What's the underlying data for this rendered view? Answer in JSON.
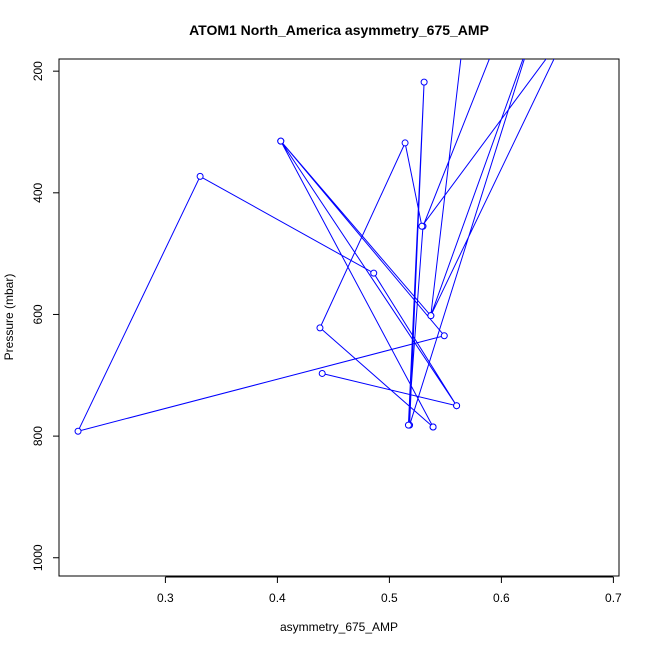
{
  "chart_data": {
    "type": "line",
    "title": "ATOM1 North_America asymmetry_675_AMP",
    "xlabel": "asymmetry_675_AMP",
    "ylabel": "Pressure (mbar)",
    "xlim": [
      0.205,
      0.705
    ],
    "ylim": [
      1030,
      180
    ],
    "y_reversed": true,
    "xticks": [
      0.3,
      0.4,
      0.5,
      0.6,
      0.7
    ],
    "xtick_labels": [
      "0.3",
      "0.4",
      "0.5",
      "0.6",
      "0.7"
    ],
    "yticks": [
      200,
      400,
      600,
      800,
      1000
    ],
    "ytick_labels": [
      "200",
      "400",
      "600",
      "800",
      "1000"
    ],
    "grid": false,
    "series": [
      {
        "color": "#0000ff",
        "marker": "open-circle",
        "points": [
          {
            "x": 0.539,
            "y": 785
          },
          {
            "x": 0.403,
            "y": 315
          },
          {
            "x": 0.56,
            "y": 750
          },
          {
            "x": 0.44,
            "y": 697
          },
          {
            "x": 0.56,
            "y": 750
          },
          {
            "x": 0.486,
            "y": 532
          },
          {
            "x": 0.331,
            "y": 373
          },
          {
            "x": 0.222,
            "y": 792
          },
          {
            "x": 0.549,
            "y": 635
          },
          {
            "x": 0.403,
            "y": 315
          },
          {
            "x": 0.537,
            "y": 602
          },
          {
            "x": 0.629,
            "y": 130
          },
          {
            "x": 0.518,
            "y": 782
          },
          {
            "x": 0.531,
            "y": 218
          },
          {
            "x": 0.517,
            "y": 782
          },
          {
            "x": 0.53,
            "y": 455
          },
          {
            "x": 0.6,
            "y": 130
          },
          {
            "x": 0.567,
            "y": 130
          },
          {
            "x": 0.537,
            "y": 602
          },
          {
            "x": 0.66,
            "y": 130
          },
          {
            "x": 0.529,
            "y": 455
          },
          {
            "x": 0.514,
            "y": 318
          },
          {
            "x": 0.438,
            "y": 622
          },
          {
            "x": 0.539,
            "y": 785
          }
        ]
      }
    ]
  }
}
